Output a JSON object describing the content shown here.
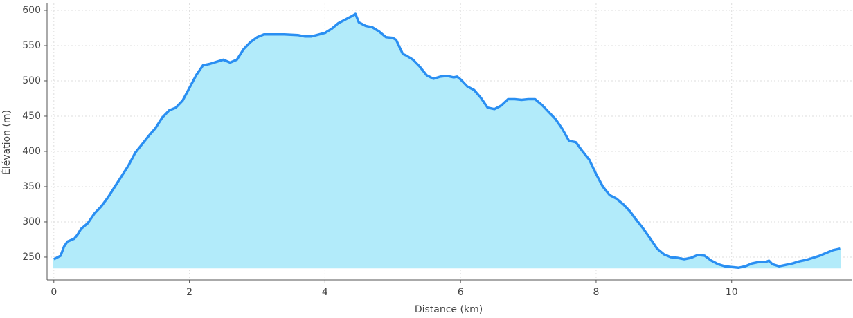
{
  "chart_data": {
    "type": "area",
    "xlabel": "Distance (km)",
    "ylabel": "Élévation (m)",
    "x": [
      0,
      0.1,
      0.15,
      0.2,
      0.3,
      0.35,
      0.4,
      0.5,
      0.6,
      0.7,
      0.8,
      0.9,
      1.0,
      1.1,
      1.2,
      1.3,
      1.4,
      1.5,
      1.6,
      1.7,
      1.8,
      1.9,
      2.0,
      2.1,
      2.2,
      2.3,
      2.4,
      2.5,
      2.6,
      2.7,
      2.8,
      2.9,
      3.0,
      3.1,
      3.2,
      3.4,
      3.6,
      3.7,
      3.8,
      4.0,
      4.1,
      4.2,
      4.3,
      4.4,
      4.45,
      4.5,
      4.6,
      4.7,
      4.8,
      4.9,
      5.0,
      5.05,
      5.1,
      5.15,
      5.2,
      5.3,
      5.4,
      5.5,
      5.6,
      5.7,
      5.8,
      5.9,
      5.95,
      6.0,
      6.1,
      6.2,
      6.3,
      6.4,
      6.5,
      6.6,
      6.7,
      6.8,
      6.9,
      7.0,
      7.1,
      7.2,
      7.3,
      7.4,
      7.5,
      7.6,
      7.7,
      7.8,
      7.9,
      8.0,
      8.1,
      8.2,
      8.3,
      8.4,
      8.5,
      8.6,
      8.7,
      8.8,
      8.9,
      9.0,
      9.1,
      9.2,
      9.3,
      9.4,
      9.5,
      9.6,
      9.7,
      9.8,
      9.9,
      10.0,
      10.1,
      10.2,
      10.3,
      10.4,
      10.5,
      10.55,
      10.6,
      10.7,
      10.8,
      10.9,
      11.0,
      11.1,
      11.2,
      11.3,
      11.4,
      11.5,
      11.6
    ],
    "values": [
      247,
      252,
      265,
      272,
      276,
      282,
      290,
      298,
      312,
      322,
      335,
      350,
      365,
      380,
      398,
      410,
      422,
      433,
      448,
      458,
      462,
      472,
      490,
      508,
      522,
      524,
      527,
      530,
      526,
      530,
      545,
      555,
      562,
      566,
      566,
      566,
      565,
      563,
      563,
      568,
      574,
      582,
      587,
      592,
      595,
      583,
      578,
      576,
      570,
      562,
      561,
      558,
      548,
      538,
      536,
      530,
      520,
      508,
      503,
      506,
      507,
      505,
      506,
      502,
      492,
      487,
      476,
      462,
      460,
      465,
      474,
      474,
      473,
      474,
      474,
      466,
      456,
      446,
      432,
      415,
      413,
      400,
      388,
      368,
      350,
      338,
      333,
      325,
      315,
      302,
      290,
      276,
      262,
      254,
      250,
      249,
      247,
      249,
      253,
      252,
      245,
      240,
      237,
      236,
      235,
      237,
      241,
      243,
      243,
      245,
      240,
      237,
      239,
      241,
      244,
      246,
      249,
      252,
      256,
      260,
      262
    ],
    "color": "#2a8ff2",
    "fill_color": "#b2ebfa",
    "xlim": [
      -0.1,
      11.77
    ],
    "ylim": [
      217.6,
      609.8
    ],
    "xticks": [
      0,
      2,
      4,
      6,
      8,
      10
    ],
    "yticks": [
      250,
      300,
      350,
      400,
      450,
      500,
      550,
      600
    ],
    "grid": true
  }
}
